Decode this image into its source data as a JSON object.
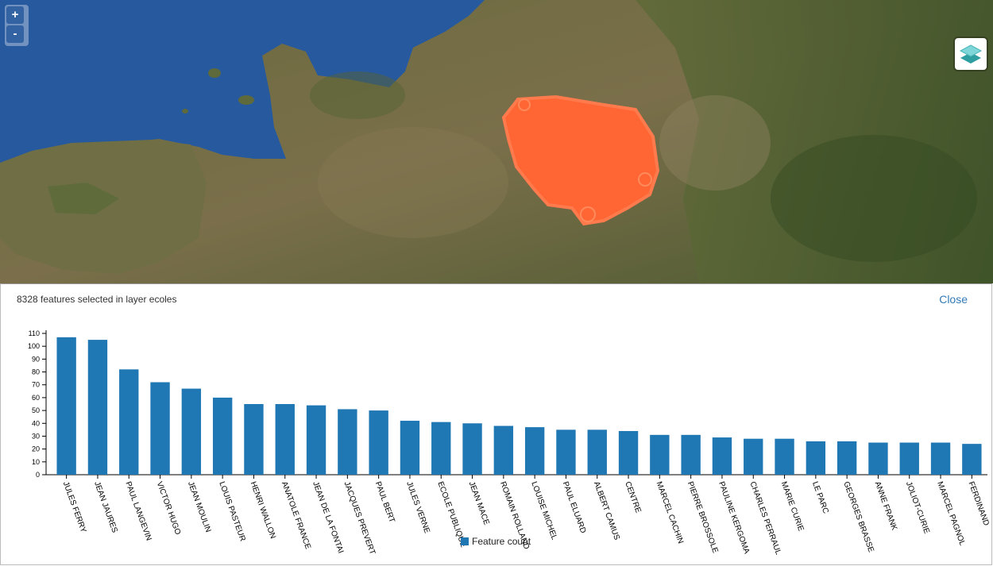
{
  "map": {
    "zoom_in_label": "+",
    "zoom_out_label": "-",
    "layer_switcher_icon": "layers-icon",
    "selection_color": "#ff6633",
    "sea_color": "#2a5ca0"
  },
  "panel": {
    "summary": "8328 features selected in layer ecoles",
    "close_label": "Close"
  },
  "chart_data": {
    "type": "bar",
    "categories": [
      "JULES FERRY",
      "JEAN JAURES",
      "PAUL LANGEVIN",
      "VICTOR HUGO",
      "JEAN MOULIN",
      "LOUIS PASTEUR",
      "HENRI WALLON",
      "ANATOLE FRANCE",
      "JEAN DE LA FONTAI",
      "JACQUES PREVERT",
      "PAUL BERT",
      "JULES VERNE",
      "ECOLE PUBLIQUE",
      "JEAN MACE",
      "ROMAIN ROLLAND",
      "LOUISE MICHEL",
      "PAUL ELUARD",
      "ALBERT CAMUS",
      "CENTRE",
      "MARCEL CACHIN",
      "PIERRE BROSSOLE",
      "PAULINE KERGOMA",
      "CHARLES PERRAUL",
      "MARIE CURIE",
      "LE PARC",
      "GEORGES BRASSE",
      "ANNE FRANK",
      "JOLIOT-CURIE",
      "MARCEL PAGNOL",
      "FERDINAND"
    ],
    "series": [
      {
        "name": "Feature count",
        "values": [
          107,
          105,
          82,
          72,
          67,
          60,
          55,
          55,
          54,
          51,
          50,
          42,
          41,
          40,
          38,
          37,
          35,
          35,
          34,
          31,
          31,
          29,
          28,
          28,
          26,
          26,
          25,
          25,
          25,
          24
        ]
      }
    ],
    "ylim": [
      0,
      110
    ],
    "yticks": [
      0,
      10,
      20,
      30,
      40,
      50,
      60,
      70,
      80,
      90,
      100,
      110
    ],
    "bar_color": "#1f77b4",
    "legend_position": "bottom-center"
  }
}
